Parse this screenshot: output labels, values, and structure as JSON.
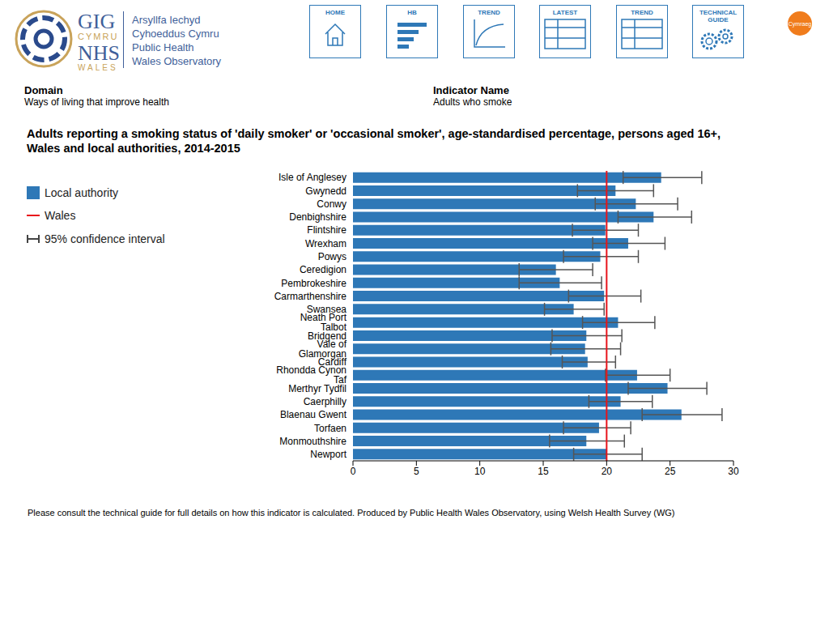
{
  "header": {
    "logo": {
      "gig": "GIG",
      "cymru": "CYMRU",
      "nhs": "NHS",
      "wales": "WALES",
      "org_welsh": [
        "Arsyllfa Iechyd",
        "Cyhoeddus Cymru"
      ],
      "org_english": [
        "Public Health",
        "Wales Observatory"
      ]
    },
    "nav": [
      "HOME",
      "HB",
      "TREND",
      "LATEST",
      "TREND",
      "TECHNICAL GUIDE"
    ],
    "language": "Cymraeg"
  },
  "domain": {
    "label": "Domain",
    "value": "Ways of living that improve health"
  },
  "indicator": {
    "label": "Indicator Name",
    "value": "Adults who smoke"
  },
  "chart_data": {
    "type": "bar",
    "orientation": "horizontal",
    "title": "Adults reporting a smoking status of 'daily smoker' or 'occasional smoker', age-standardised percentage, persons aged 16+, Wales and local authorities, 2014-2015",
    "categories": [
      "Isle of Anglesey",
      "Gwynedd",
      "Conwy",
      "Denbighshire",
      "Flintshire",
      "Wrexham",
      "Powys",
      "Ceredigion",
      "Pembrokeshire",
      "Carmarthenshire",
      "Swansea",
      "Neath Port Talbot",
      "Bridgend",
      "Vale of Glamorgan",
      "Cardiff",
      "Rhondda Cynon Taf",
      "Merthyr Tydfil",
      "Caerphilly",
      "Blaenau Gwent",
      "Torfaen",
      "Monmouthshire",
      "Newport"
    ],
    "series": [
      {
        "name": "Local authority",
        "color": "#2e78b7",
        "values": [
          24.3,
          20.7,
          22.3,
          23.7,
          19.9,
          21.7,
          19.5,
          16.0,
          16.3,
          19.8,
          17.4,
          20.9,
          18.4,
          18.3,
          18.5,
          22.4,
          24.8,
          21.1,
          25.9,
          19.4,
          18.4,
          20.0
        ],
        "ci_lower": [
          21.3,
          17.7,
          19.1,
          20.9,
          17.3,
          18.9,
          16.6,
          13.1,
          13.1,
          17.0,
          15.1,
          18.1,
          15.7,
          15.6,
          16.5,
          19.9,
          21.7,
          18.6,
          22.8,
          16.6,
          15.5,
          17.4
        ],
        "ci_upper": [
          27.5,
          23.7,
          25.6,
          26.7,
          22.5,
          24.6,
          22.5,
          18.9,
          19.6,
          22.7,
          19.8,
          23.8,
          21.2,
          21.1,
          20.7,
          25.0,
          27.9,
          23.6,
          29.1,
          21.9,
          21.4,
          22.8
        ]
      }
    ],
    "reference_line": {
      "name": "Wales",
      "value": 20.0,
      "color": "#e8141b"
    },
    "error_bar_name": "95% confidence interval",
    "xlim": [
      0,
      30
    ],
    "xticks": [
      0,
      5,
      10,
      15,
      20,
      25,
      30
    ],
    "grid": false,
    "legend": "left"
  },
  "footer": "Please consult the technical guide for full details on how this indicator is calculated.  Produced by Public Health Wales Observatory, using Welsh Health Survey (WG)"
}
